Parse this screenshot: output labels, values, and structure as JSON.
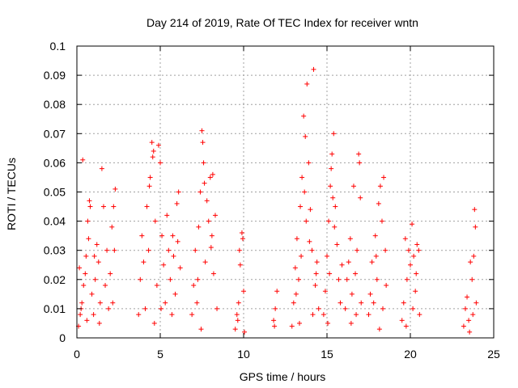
{
  "chart_data": {
    "type": "scatter",
    "title": "Day 214 of 2019, Rate Of TEC Index for receiver wntn",
    "xlabel": "GPS time / hours",
    "ylabel": "ROTI / TECUs",
    "xlim": [
      0,
      25
    ],
    "ylim": [
      0,
      0.1
    ],
    "xticks": [
      "0",
      "5",
      "10",
      "15",
      "20",
      "25"
    ],
    "yticks": [
      "0",
      "0.01",
      "0.02",
      "0.03",
      "0.04",
      "0.05",
      "0.06",
      "0.07",
      "0.08",
      "0.09",
      "0.1"
    ],
    "grid": true,
    "marker": "+",
    "marker_color": "#ff0000",
    "series": [
      {
        "name": "ROTI",
        "points": [
          [
            0.1,
            0.004
          ],
          [
            0.2,
            0.008
          ],
          [
            0.3,
            0.012
          ],
          [
            0.4,
            0.018
          ],
          [
            0.5,
            0.022
          ],
          [
            0.35,
            0.061
          ],
          [
            0.6,
            0.006
          ],
          [
            0.7,
            0.034
          ],
          [
            0.8,
            0.045
          ],
          [
            0.9,
            0.015
          ],
          [
            0.55,
            0.028
          ],
          [
            0.65,
            0.04
          ],
          [
            0.75,
            0.047
          ],
          [
            0.15,
            0.024
          ],
          [
            0.25,
            0.01
          ],
          [
            1.0,
            0.008
          ],
          [
            1.1,
            0.02
          ],
          [
            1.2,
            0.032
          ],
          [
            1.3,
            0.026
          ],
          [
            1.4,
            0.012
          ],
          [
            1.5,
            0.058
          ],
          [
            1.6,
            0.045
          ],
          [
            1.7,
            0.018
          ],
          [
            1.8,
            0.03
          ],
          [
            1.9,
            0.01
          ],
          [
            2.0,
            0.022
          ],
          [
            2.1,
            0.038
          ],
          [
            2.2,
            0.045
          ],
          [
            2.3,
            0.051
          ],
          [
            2.25,
            0.03
          ],
          [
            2.15,
            0.012
          ],
          [
            1.05,
            0.028
          ],
          [
            1.35,
            0.005
          ],
          [
            3.7,
            0.008
          ],
          [
            3.8,
            0.02
          ],
          [
            3.9,
            0.035
          ],
          [
            4.0,
            0.026
          ],
          [
            4.1,
            0.01
          ],
          [
            4.2,
            0.045
          ],
          [
            4.3,
            0.03
          ],
          [
            4.4,
            0.055
          ],
          [
            4.5,
            0.067
          ],
          [
            4.6,
            0.064
          ],
          [
            4.7,
            0.04
          ],
          [
            4.8,
            0.018
          ],
          [
            4.9,
            0.066
          ],
          [
            5.0,
            0.06
          ],
          [
            5.1,
            0.035
          ],
          [
            5.2,
            0.025
          ],
          [
            5.3,
            0.012
          ],
          [
            5.4,
            0.042
          ],
          [
            5.5,
            0.03
          ],
          [
            5.6,
            0.02
          ],
          [
            5.7,
            0.008
          ],
          [
            5.8,
            0.028
          ],
          [
            5.9,
            0.015
          ],
          [
            6.0,
            0.046
          ],
          [
            6.1,
            0.05
          ],
          [
            6.2,
            0.024
          ],
          [
            4.55,
            0.062
          ],
          [
            4.35,
            0.052
          ],
          [
            5.05,
            0.01
          ],
          [
            4.65,
            0.005
          ],
          [
            5.75,
            0.035
          ],
          [
            6.05,
            0.033
          ],
          [
            6.9,
            0.008
          ],
          [
            7.0,
            0.018
          ],
          [
            7.1,
            0.03
          ],
          [
            7.2,
            0.012
          ],
          [
            7.3,
            0.038
          ],
          [
            7.4,
            0.05
          ],
          [
            7.5,
            0.071
          ],
          [
            7.55,
            0.067
          ],
          [
            7.6,
            0.06
          ],
          [
            7.7,
            0.026
          ],
          [
            7.8,
            0.047
          ],
          [
            7.9,
            0.04
          ],
          [
            8.0,
            0.055
          ],
          [
            8.1,
            0.035
          ],
          [
            8.2,
            0.022
          ],
          [
            8.3,
            0.042
          ],
          [
            8.4,
            0.01
          ],
          [
            7.45,
            0.003
          ],
          [
            7.65,
            0.053
          ],
          [
            8.05,
            0.031
          ],
          [
            8.15,
            0.056
          ],
          [
            7.25,
            0.02
          ],
          [
            9.5,
            0.003
          ],
          [
            9.6,
            0.008
          ],
          [
            9.7,
            0.012
          ],
          [
            9.8,
            0.025
          ],
          [
            9.9,
            0.036
          ],
          [
            9.95,
            0.034
          ],
          [
            10.0,
            0.016
          ],
          [
            10.05,
            0.002
          ],
          [
            9.75,
            0.03
          ],
          [
            9.65,
            0.006
          ],
          [
            11.8,
            0.006
          ],
          [
            11.9,
            0.01
          ],
          [
            12.0,
            0.016
          ],
          [
            11.85,
            0.004
          ],
          [
            12.9,
            0.004
          ],
          [
            13.0,
            0.012
          ],
          [
            13.1,
            0.024
          ],
          [
            13.2,
            0.034
          ],
          [
            13.3,
            0.02
          ],
          [
            13.4,
            0.045
          ],
          [
            13.5,
            0.055
          ],
          [
            13.6,
            0.076
          ],
          [
            13.7,
            0.069
          ],
          [
            13.8,
            0.087
          ],
          [
            13.9,
            0.06
          ],
          [
            14.0,
            0.044
          ],
          [
            14.1,
            0.03
          ],
          [
            14.2,
            0.092
          ],
          [
            14.3,
            0.018
          ],
          [
            14.4,
            0.026
          ],
          [
            14.5,
            0.01
          ],
          [
            13.65,
            0.05
          ],
          [
            13.45,
            0.028
          ],
          [
            13.75,
            0.04
          ],
          [
            13.95,
            0.033
          ],
          [
            14.15,
            0.008
          ],
          [
            13.15,
            0.015
          ],
          [
            13.35,
            0.005
          ],
          [
            14.35,
            0.022
          ],
          [
            14.8,
            0.008
          ],
          [
            14.9,
            0.016
          ],
          [
            15.0,
            0.028
          ],
          [
            15.1,
            0.04
          ],
          [
            15.2,
            0.052
          ],
          [
            15.3,
            0.063
          ],
          [
            15.4,
            0.07
          ],
          [
            15.5,
            0.045
          ],
          [
            15.6,
            0.032
          ],
          [
            15.7,
            0.02
          ],
          [
            15.8,
            0.012
          ],
          [
            15.9,
            0.025
          ],
          [
            15.25,
            0.058
          ],
          [
            15.35,
            0.048
          ],
          [
            15.45,
            0.038
          ],
          [
            15.05,
            0.005
          ],
          [
            15.15,
            0.022
          ],
          [
            16.1,
            0.01
          ],
          [
            16.2,
            0.02
          ],
          [
            16.3,
            0.026
          ],
          [
            16.4,
            0.034
          ],
          [
            16.5,
            0.015
          ],
          [
            16.6,
            0.052
          ],
          [
            16.7,
            0.022
          ],
          [
            16.8,
            0.03
          ],
          [
            16.9,
            0.063
          ],
          [
            16.95,
            0.06
          ],
          [
            17.0,
            0.048
          ],
          [
            17.05,
            0.012
          ],
          [
            16.75,
            0.008
          ],
          [
            16.45,
            0.005
          ],
          [
            17.5,
            0.008
          ],
          [
            17.6,
            0.015
          ],
          [
            17.7,
            0.026
          ],
          [
            17.8,
            0.012
          ],
          [
            17.9,
            0.035
          ],
          [
            18.0,
            0.02
          ],
          [
            18.1,
            0.046
          ],
          [
            18.2,
            0.052
          ],
          [
            18.3,
            0.04
          ],
          [
            18.4,
            0.055
          ],
          [
            18.5,
            0.03
          ],
          [
            18.55,
            0.018
          ],
          [
            18.35,
            0.01
          ],
          [
            17.95,
            0.028
          ],
          [
            18.15,
            0.003
          ],
          [
            19.5,
            0.006
          ],
          [
            19.6,
            0.012
          ],
          [
            19.7,
            0.034
          ],
          [
            19.8,
            0.02
          ],
          [
            19.9,
            0.03
          ],
          [
            20.0,
            0.025
          ],
          [
            20.1,
            0.039
          ],
          [
            20.2,
            0.028
          ],
          [
            20.3,
            0.016
          ],
          [
            20.4,
            0.032
          ],
          [
            20.5,
            0.03
          ],
          [
            20.55,
            0.008
          ],
          [
            20.35,
            0.022
          ],
          [
            20.15,
            0.01
          ],
          [
            19.75,
            0.004
          ],
          [
            23.2,
            0.004
          ],
          [
            23.3,
            0.01
          ],
          [
            23.4,
            0.014
          ],
          [
            23.5,
            0.006
          ],
          [
            23.6,
            0.026
          ],
          [
            23.7,
            0.02
          ],
          [
            23.8,
            0.028
          ],
          [
            23.85,
            0.044
          ],
          [
            23.9,
            0.038
          ],
          [
            23.95,
            0.012
          ],
          [
            23.75,
            0.008
          ],
          [
            23.55,
            0.002
          ]
        ]
      }
    ]
  }
}
